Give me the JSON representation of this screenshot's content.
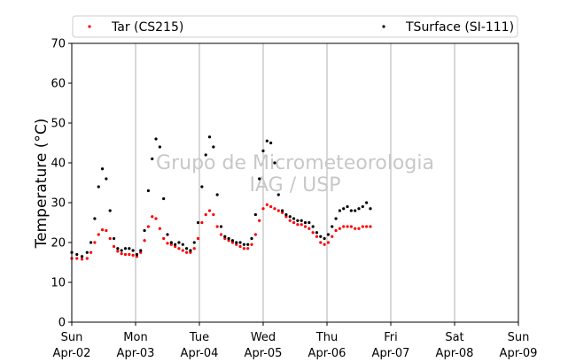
{
  "chart_data": {
    "type": "scatter",
    "title": "",
    "xlabel": "",
    "ylabel": "Temperature (°C)",
    "ylim": [
      0,
      70
    ],
    "yticks": [
      0,
      10,
      20,
      30,
      40,
      50,
      60,
      70
    ],
    "xlim_days": [
      0,
      7
    ],
    "xticks": [
      {
        "day": "Sun",
        "date": "Apr-02"
      },
      {
        "day": "Mon",
        "date": "Apr-03"
      },
      {
        "day": "Tue",
        "date": "Apr-04"
      },
      {
        "day": "Wed",
        "date": "Apr-05"
      },
      {
        "day": "Thu",
        "date": "Apr-06"
      },
      {
        "day": "Fri",
        "date": "Apr-07"
      },
      {
        "day": "Sat",
        "date": "Apr-08"
      },
      {
        "day": "Sun",
        "date": "Apr-09"
      }
    ],
    "grid": "vertical",
    "legend_position": "top",
    "watermark": [
      "Grupo de Micrometeorologia",
      "IAG / USP"
    ],
    "series": [
      {
        "name": "Tar (CS215)",
        "color": "#ff0000",
        "x": [
          0.0,
          0.08,
          0.16,
          0.24,
          0.3,
          0.36,
          0.42,
          0.48,
          0.54,
          0.6,
          0.66,
          0.72,
          0.78,
          0.84,
          0.9,
          0.96,
          1.02,
          1.08,
          1.14,
          1.2,
          1.26,
          1.32,
          1.38,
          1.44,
          1.5,
          1.56,
          1.62,
          1.68,
          1.74,
          1.8,
          1.86,
          1.92,
          1.98,
          2.04,
          2.1,
          2.16,
          2.22,
          2.28,
          2.34,
          2.4,
          2.46,
          2.52,
          2.58,
          2.64,
          2.7,
          2.76,
          2.82,
          2.88,
          2.94,
          3.0,
          3.06,
          3.12,
          3.18,
          3.24,
          3.3,
          3.36,
          3.42,
          3.48,
          3.54,
          3.6,
          3.66,
          3.72,
          3.78,
          3.84,
          3.9,
          3.96,
          4.02,
          4.08,
          4.14,
          4.2,
          4.26,
          4.32,
          4.38,
          4.44,
          4.5,
          4.56,
          4.62,
          4.68
        ],
        "y": [
          16.0,
          16.0,
          15.8,
          16.0,
          17.5,
          20.0,
          22.0,
          23.2,
          23.0,
          21.0,
          19.0,
          17.8,
          17.2,
          17.0,
          17.0,
          16.8,
          16.5,
          17.5,
          20.5,
          24.0,
          26.5,
          26.0,
          23.5,
          21.0,
          19.8,
          19.5,
          19.0,
          18.5,
          18.0,
          17.5,
          17.5,
          18.5,
          21.0,
          25.0,
          27.0,
          28.0,
          27.0,
          24.0,
          22.0,
          21.0,
          20.5,
          20.0,
          19.5,
          19.0,
          18.5,
          18.5,
          19.5,
          22.0,
          25.5,
          28.5,
          29.5,
          29.0,
          28.5,
          28.0,
          27.5,
          26.5,
          25.5,
          25.0,
          24.5,
          24.5,
          24.0,
          23.5,
          22.5,
          21.5,
          20.0,
          19.5,
          20.0,
          21.5,
          23.0,
          23.5,
          24.0,
          24.0,
          24.0,
          23.5,
          23.5,
          24.0,
          24.0,
          24.0
        ]
      },
      {
        "name": "TSurface (SI-111)",
        "color": "#000000",
        "x": [
          0.0,
          0.08,
          0.16,
          0.24,
          0.3,
          0.36,
          0.42,
          0.48,
          0.54,
          0.6,
          0.66,
          0.72,
          0.78,
          0.84,
          0.9,
          0.96,
          1.02,
          1.08,
          1.14,
          1.2,
          1.26,
          1.32,
          1.38,
          1.44,
          1.5,
          1.56,
          1.62,
          1.68,
          1.74,
          1.8,
          1.86,
          1.92,
          1.98,
          2.04,
          2.1,
          2.16,
          2.22,
          2.28,
          2.34,
          2.4,
          2.46,
          2.52,
          2.58,
          2.64,
          2.7,
          2.76,
          2.82,
          2.88,
          2.94,
          3.0,
          3.06,
          3.12,
          3.18,
          3.24,
          3.3,
          3.36,
          3.42,
          3.48,
          3.54,
          3.6,
          3.66,
          3.72,
          3.78,
          3.84,
          3.9,
          3.96,
          4.02,
          4.08,
          4.14,
          4.2,
          4.26,
          4.32,
          4.38,
          4.44,
          4.5,
          4.56,
          4.62,
          4.68
        ],
        "y": [
          17.5,
          17.0,
          16.5,
          17.5,
          20.0,
          26.0,
          34.0,
          38.5,
          36.0,
          28.0,
          21.0,
          18.5,
          18.0,
          18.5,
          18.5,
          18.0,
          17.0,
          18.0,
          23.0,
          33.0,
          41.0,
          46.0,
          44.0,
          31.0,
          22.0,
          20.0,
          19.5,
          20.0,
          19.5,
          18.5,
          18.0,
          20.0,
          25.0,
          34.0,
          42.0,
          46.5,
          44.0,
          32.0,
          24.0,
          21.5,
          21.0,
          20.5,
          20.0,
          20.0,
          19.5,
          19.5,
          21.0,
          27.0,
          36.0,
          43.0,
          45.5,
          45.0,
          40.0,
          32.0,
          28.0,
          27.0,
          26.5,
          26.0,
          25.5,
          25.5,
          25.0,
          25.0,
          24.0,
          22.5,
          21.5,
          21.0,
          22.0,
          24.0,
          26.0,
          28.0,
          28.5,
          29.0,
          28.0,
          28.0,
          28.5,
          29.0,
          30.0,
          28.5
        ]
      }
    ]
  }
}
